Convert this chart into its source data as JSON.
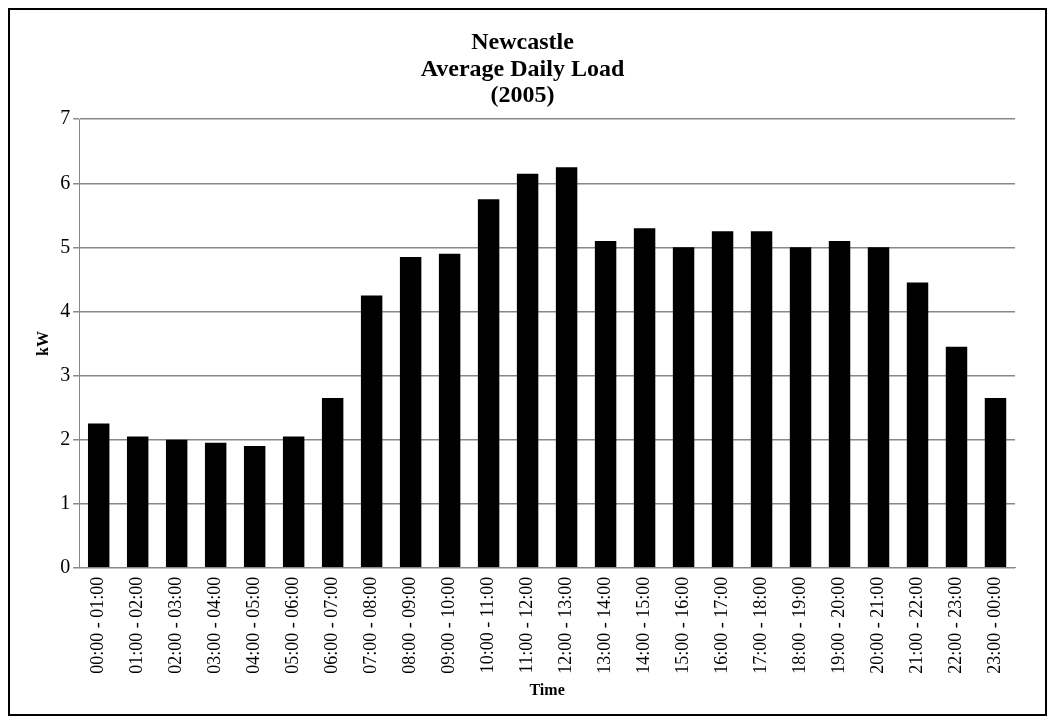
{
  "chart_data": {
    "type": "bar",
    "title": [
      "Newcastle",
      "Average Daily Load",
      "(2005)"
    ],
    "xlabel": "Time",
    "ylabel": "kW",
    "categories": [
      "00:00 - 01:00",
      "01:00 - 02:00",
      "02:00 - 03:00",
      "03:00 - 04:00",
      "04:00 - 05:00",
      "05:00 - 06:00",
      "06:00 - 07:00",
      "07:00 - 08:00",
      "08:00 - 09:00",
      "09:00 - 10:00",
      "10:00 - 11:00",
      "11:00 - 12:00",
      "12:00 - 13:00",
      "13:00 - 14:00",
      "14:00 - 15:00",
      "15:00 - 16:00",
      "16:00 - 17:00",
      "17:00 - 18:00",
      "18:00 - 19:00",
      "19:00 - 20:00",
      "20:00 - 21:00",
      "21:00 - 22:00",
      "22:00 - 23:00",
      "23:00 - 00:00"
    ],
    "values": [
      2.25,
      2.05,
      2.0,
      1.95,
      1.9,
      2.05,
      2.65,
      4.25,
      4.85,
      4.9,
      5.75,
      6.15,
      6.25,
      5.1,
      5.3,
      5.0,
      5.25,
      5.25,
      5.0,
      5.1,
      5.0,
      4.45,
      3.45,
      2.65
    ],
    "color": "#000000",
    "ylim": [
      0,
      7
    ],
    "yticks": [
      0,
      1,
      2,
      3,
      4,
      5,
      6,
      7
    ],
    "grid": "y",
    "legend": false
  }
}
